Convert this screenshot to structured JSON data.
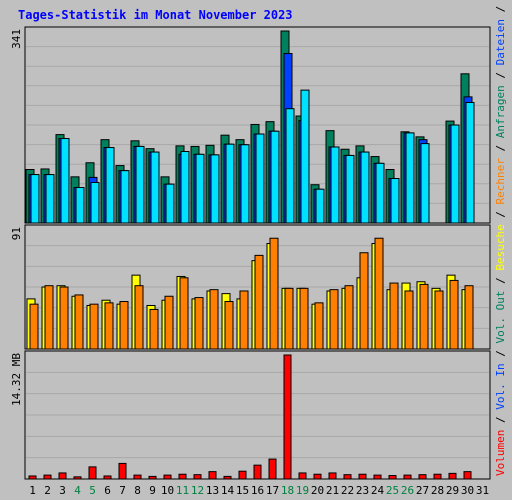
{
  "colors": {
    "background": "#c0c0c0",
    "plot_bg": "#c0c0c0",
    "title": "#0000ff",
    "hits": "#00805c",
    "files": "#0040ff",
    "pages": "#00e0ff",
    "visits": "#ffff00",
    "sites": "#ff8000",
    "volume": "#ff0000",
    "weekend_label": "#008040",
    "day_label": "#000000"
  },
  "chart_data": {
    "type": "bar",
    "title": "Tages-Statistik im Monat November 2023",
    "categories": [
      "1",
      "2",
      "3",
      "4",
      "5",
      "6",
      "7",
      "8",
      "9",
      "10",
      "11",
      "12",
      "13",
      "14",
      "15",
      "16",
      "17",
      "18",
      "19",
      "20",
      "21",
      "22",
      "23",
      "24",
      "25",
      "26",
      "27",
      "28",
      "29",
      "30",
      "31"
    ],
    "weekend_days": [
      "4",
      "5",
      "11",
      "12",
      "18",
      "19",
      "25",
      "26"
    ],
    "panels": [
      {
        "id": "top",
        "scale_label": "341",
        "ylim": [
          0,
          341
        ],
        "legend": [
          {
            "text": "Anfragen",
            "color": "#00805c"
          },
          {
            "text": "Dateien",
            "color": "#0040ff"
          },
          {
            "text": "Seiten",
            "color": "#00e0ff"
          }
        ],
        "series": [
          {
            "name": "Anfragen",
            "values": [
              95,
              96,
              157,
              82,
              107,
              148,
              102,
              146,
              132,
              82,
              137,
              136,
              138,
              156,
              148,
              175,
              180,
              341,
              190,
              68,
              164,
              131,
              137,
              118,
              95,
              162,
              153,
              0,
              181,
              265,
              0
            ]
          },
          {
            "name": "Dateien",
            "values": [
              86,
              86,
              150,
              63,
              81,
              134,
              93,
              136,
              126,
              69,
              122,
              122,
              121,
              140,
              139,
              158,
              163,
              301,
              182,
              60,
              135,
              120,
              126,
              106,
              79,
              160,
              148,
              0,
              174,
              224,
              0
            ]
          },
          {
            "name": "Seiten",
            "values": [
              86,
              86,
              150,
              63,
              72,
              134,
              93,
              136,
              126,
              69,
              127,
              122,
              121,
              140,
              139,
              158,
              163,
              203,
              236,
              60,
              135,
              120,
              126,
              106,
              79,
              160,
              141,
              0,
              174,
              214,
              0
            ]
          }
        ]
      },
      {
        "id": "middle",
        "scale_label": "91",
        "ylim": [
          0,
          91
        ],
        "legend": [
          {
            "text": "Besuche",
            "color": "#ffff00"
          },
          {
            "text": "Rechner",
            "color": "#ff8000"
          }
        ],
        "series": [
          {
            "name": "Besuche",
            "values": [
              38,
              47,
              48,
              40,
              33,
              37,
              34,
              56,
              33,
              37,
              55,
              38,
              44,
              42,
              38,
              67,
              80,
              46,
              46,
              34,
              44,
              46,
              54,
              80,
              45,
              50,
              51,
              46,
              56,
              45,
              0
            ]
          },
          {
            "name": "Rechner",
            "values": [
              34,
              48,
              47,
              41,
              34,
              35,
              36,
              48,
              30,
              40,
              54,
              39,
              45,
              36,
              44,
              71,
              84,
              46,
              46,
              35,
              45,
              48,
              73,
              84,
              50,
              44,
              49,
              44,
              52,
              48,
              0
            ]
          }
        ]
      },
      {
        "id": "bottom",
        "scale_label": "14.32 MB",
        "ylim": [
          0,
          14.32
        ],
        "legend": [
          {
            "text": "Volumen",
            "color": "#ff0000"
          },
          {
            "text": "Vol. In",
            "color": "#0040ff"
          },
          {
            "text": "Vol. Out",
            "color": "#00805c"
          }
        ],
        "series": [
          {
            "name": "Volumen",
            "values": [
              0.35,
              0.45,
              0.7,
              0.25,
              1.4,
              0.35,
              1.8,
              0.45,
              0.3,
              0.45,
              0.55,
              0.5,
              0.85,
              0.3,
              0.9,
              1.6,
              2.3,
              14.32,
              0.7,
              0.55,
              0.7,
              0.5,
              0.55,
              0.45,
              0.4,
              0.45,
              0.5,
              0.55,
              0.65,
              0.85,
              0
            ]
          }
        ]
      }
    ]
  }
}
